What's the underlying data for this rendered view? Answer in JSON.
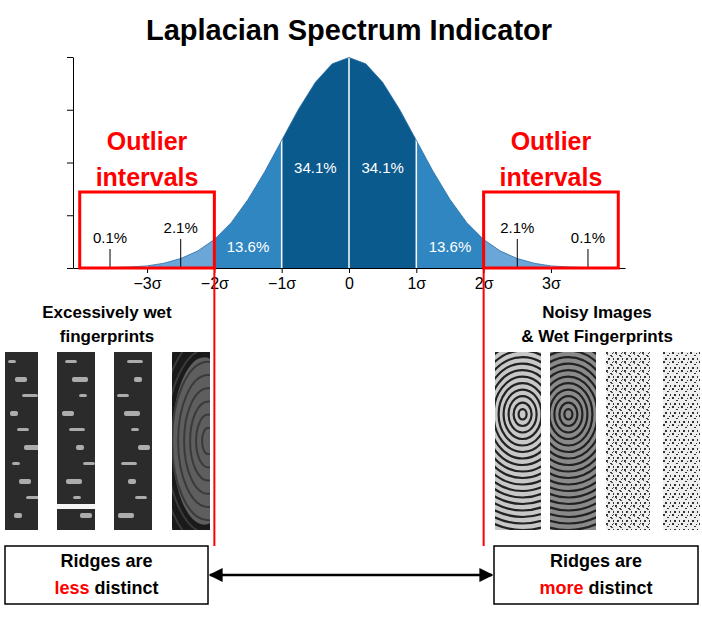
{
  "chart_data": {
    "type": "area",
    "title": "Laplacian Spectrum Indicator",
    "color": "#2a6ea6",
    "x": [
      -4,
      -3.75,
      -3.5,
      -3.25,
      -3,
      -2.75,
      -2.5,
      -2.25,
      -2,
      -1.75,
      -1.5,
      -1.25,
      -1,
      -0.75,
      -0.5,
      -0.25,
      0,
      0.25,
      0.5,
      0.75,
      1,
      1.25,
      1.5,
      1.75,
      2,
      2.25,
      2.5,
      2.75,
      3,
      3.25,
      3.5,
      3.75,
      4
    ],
    "values": [
      0,
      0,
      0.001,
      0.002,
      0.004,
      0.009,
      0.018,
      0.032,
      0.054,
      0.086,
      0.13,
      0.183,
      0.242,
      0.301,
      0.352,
      0.387,
      0.399,
      0.387,
      0.352,
      0.301,
      0.242,
      0.183,
      0.13,
      0.086,
      0.054,
      0.032,
      0.018,
      0.009,
      0.004,
      0.002,
      0.001,
      0,
      0
    ],
    "xlim": [
      -4.1,
      4.1
    ],
    "ylim": [
      0,
      0.4
    ],
    "xticks": [
      {
        "value": -3,
        "label": "−3σ"
      },
      {
        "value": -2,
        "label": "−2σ"
      },
      {
        "value": -1,
        "label": "−1σ"
      },
      0,
      {
        "value": 1,
        "label": "1σ"
      },
      {
        "value": 2,
        "label": "2σ"
      },
      {
        "value": 3,
        "label": "3σ"
      }
    ],
    "yticks": [
      0,
      0.1,
      0.2,
      0.3,
      0.4
    ],
    "tick_labels": "x",
    "regions": [
      {
        "from": -4.1,
        "to": -3,
        "value": 0.1,
        "label": "0.1%",
        "color": "#a9cbe8"
      },
      {
        "from": -3,
        "to": -2,
        "value": 2.1,
        "label": "2.1%",
        "color": "#6aa6d8"
      },
      {
        "from": -2,
        "to": -1,
        "value": 13.6,
        "label": "13.6%",
        "color": "#2f86c1"
      },
      {
        "from": -1,
        "to": 0,
        "value": 34.1,
        "label": "34.1%",
        "color": "#0b5a8e"
      },
      {
        "from": 0,
        "to": 1,
        "value": 34.1,
        "label": "34.1%",
        "color": "#0b5a8e"
      },
      {
        "from": 1,
        "to": 2,
        "value": 13.6,
        "label": "13.6%",
        "color": "#2f86c1"
      },
      {
        "from": 2,
        "to": 3,
        "value": 2.1,
        "label": "2.1%",
        "color": "#6aa6d8"
      },
      {
        "from": 3,
        "to": 4.1,
        "value": 0.1,
        "label": "0.1%",
        "color": "#a9cbe8"
      }
    ],
    "outlier_intervals": [
      {
        "label": [
          "Outlier",
          "intervals"
        ],
        "from": -4,
        "to": -2
      },
      {
        "label": [
          "Outlier",
          "intervals"
        ],
        "from": 2,
        "to": 4
      }
    ]
  },
  "panels": [
    {
      "title": [
        "Excessively wet",
        "fingerprints"
      ],
      "caption": [
        "Ridges are",
        "less",
        "distinct"
      ]
    },
    {
      "title": [
        "Noisy Images",
        "& Wet Fingerprints"
      ],
      "caption": [
        "Ridges are",
        "more",
        "distinct"
      ]
    }
  ]
}
